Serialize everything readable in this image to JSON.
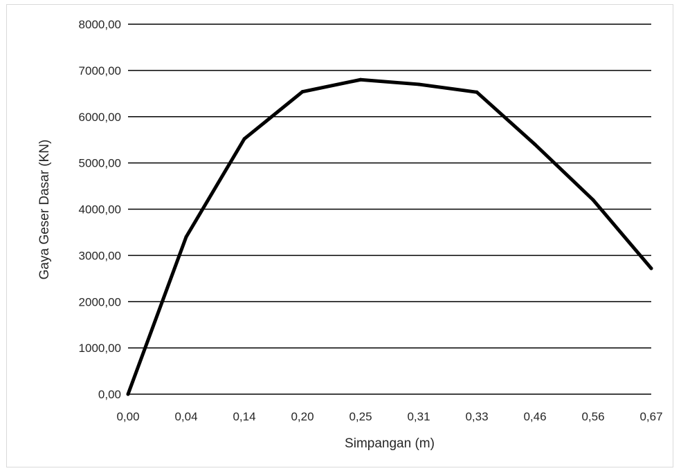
{
  "chart_data": {
    "type": "line",
    "title": "",
    "xlabel": "Simpangan (m)",
    "ylabel": "Gaya Geser Dasar (KN)",
    "categories": [
      "0,00",
      "0,04",
      "0,14",
      "0,20",
      "0,25",
      "0,31",
      "0,33",
      "0,46",
      "0,56",
      "0,67"
    ],
    "series": [
      {
        "values": [
          0,
          3400,
          5520,
          6540,
          6800,
          6700,
          6530,
          5400,
          4200,
          2720
        ]
      }
    ],
    "ylim": [
      0,
      8000
    ],
    "yticks": [
      "0,00",
      "1000,00",
      "2000,00",
      "3000,00",
      "4000,00",
      "5000,00",
      "6000,00",
      "7000,00",
      "8000,00"
    ],
    "grid": true,
    "legend": "none",
    "colors": {
      "line": "#000000",
      "grid": "#000000",
      "text": "#262626"
    }
  }
}
